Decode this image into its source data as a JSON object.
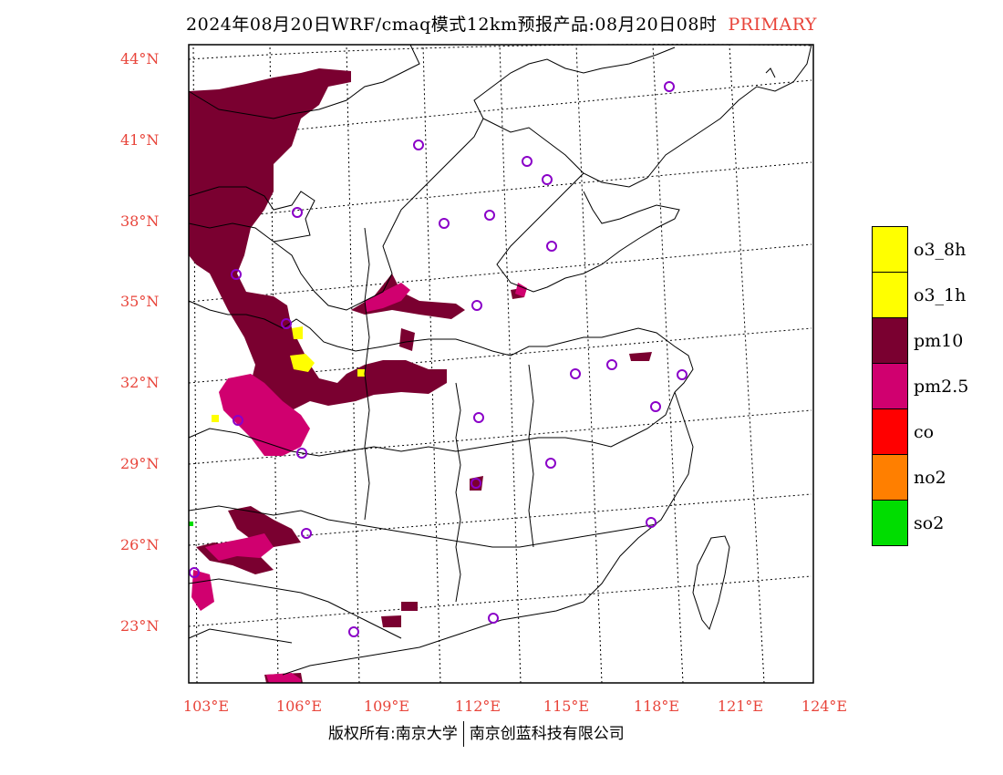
{
  "title": {
    "main": "2024年08月20日WRF/cmaq模式12km预报产品:08月20日08时",
    "tag": "PRIMARY"
  },
  "axes": {
    "lat_labels": [
      "44°N",
      "41°N",
      "38°N",
      "35°N",
      "32°N",
      "29°N",
      "26°N",
      "23°N"
    ],
    "lat_values": [
      44,
      41,
      38,
      35,
      32,
      29,
      26,
      23
    ],
    "lon_labels": [
      "103°E",
      "106°E",
      "109°E",
      "112°E",
      "115°E",
      "118°E",
      "121°E",
      "124°E"
    ],
    "lon_values": [
      103,
      106,
      109,
      112,
      115,
      118,
      121,
      124
    ]
  },
  "legend": [
    {
      "label": "o3_8h",
      "color": "#ffff00"
    },
    {
      "label": "o3_1h",
      "color": "#ffff00"
    },
    {
      "label": "pm10",
      "color": "#7a0030"
    },
    {
      "label": "pm2.5",
      "color": "#d0006f"
    },
    {
      "label": "co",
      "color": "#ff0000"
    },
    {
      "label": "no2",
      "color": "#ff7f00"
    },
    {
      "label": "so2",
      "color": "#00dd00"
    }
  ],
  "colors": {
    "pm10": "#7a0030",
    "pm25": "#d0006f",
    "o3": "#ffff00",
    "station": "#8a00c8",
    "label_red": "#e8443a"
  },
  "footer": {
    "left": "版权所有:南京大学",
    "right": "南京创蓝科技有限公司"
  }
}
